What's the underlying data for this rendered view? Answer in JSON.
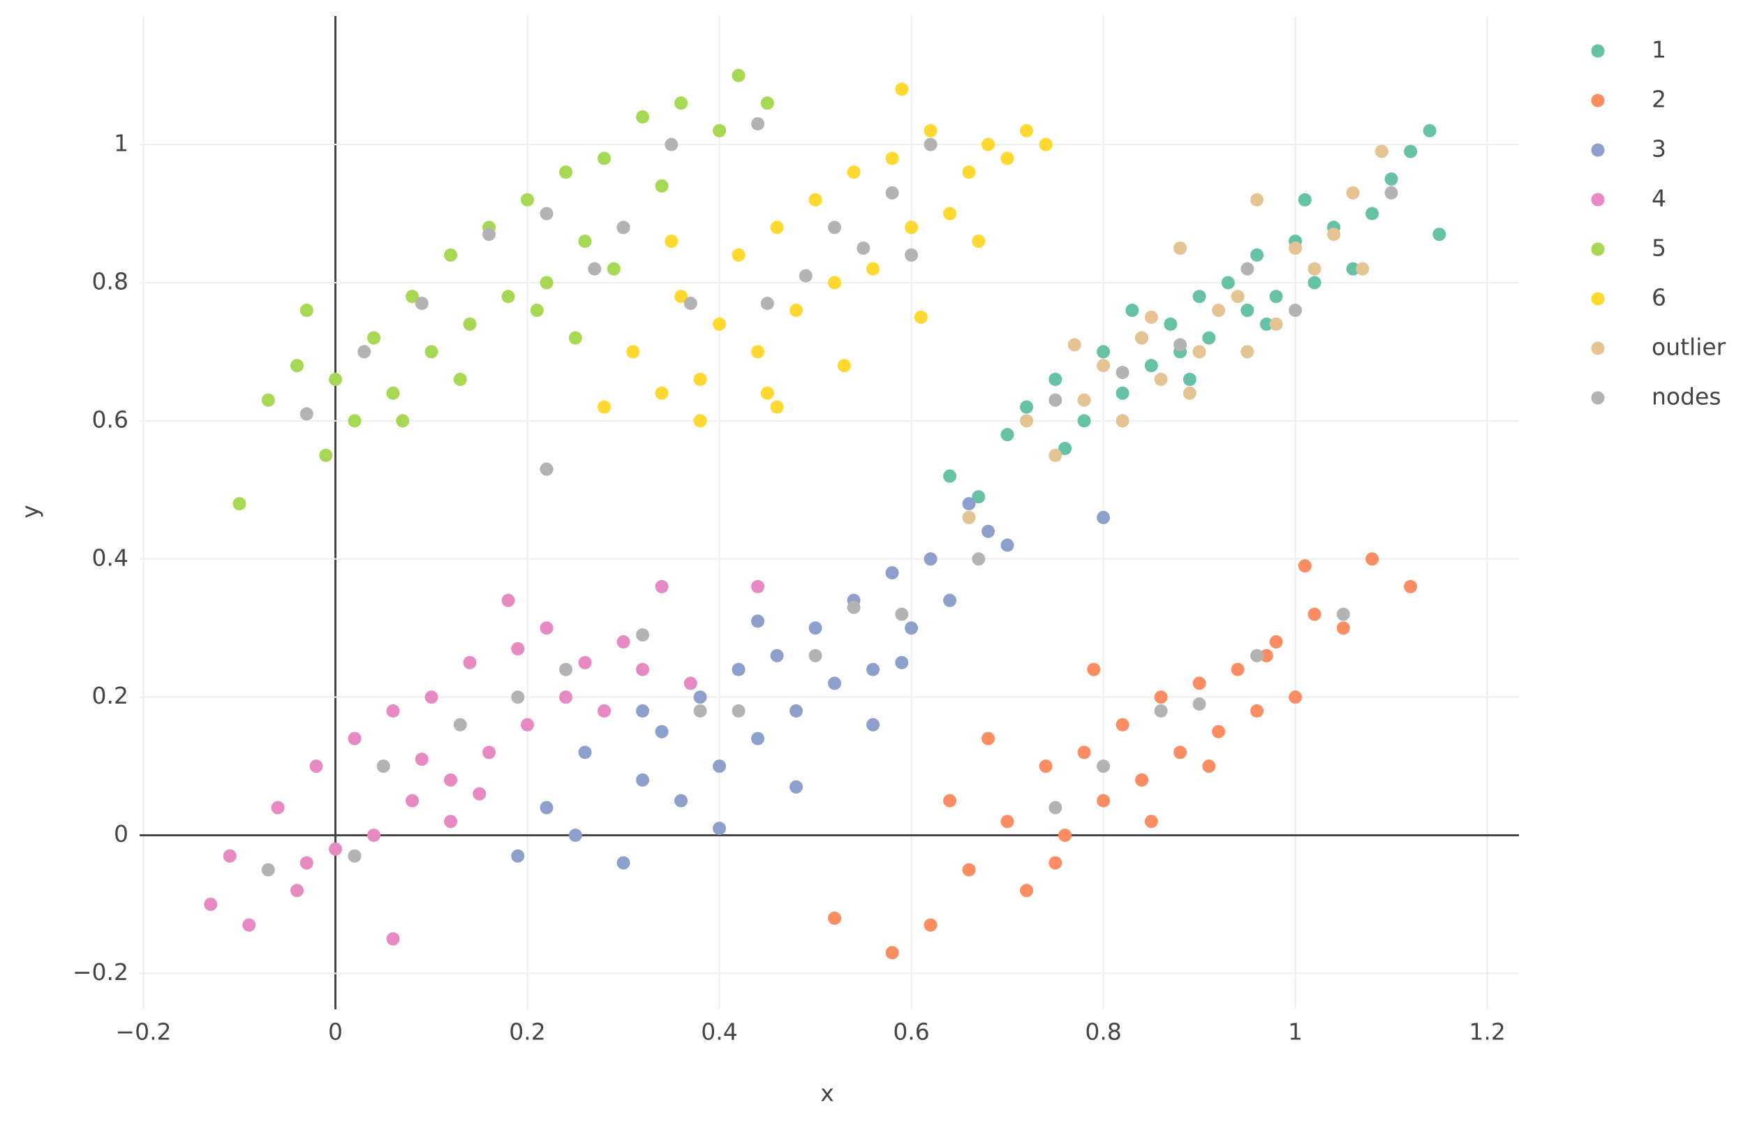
{
  "chart_data": {
    "type": "scatter",
    "x_label": "x",
    "y_label": "y",
    "xlim": [
      -0.204,
      1.233
    ],
    "ylim": [
      -0.252,
      1.186
    ],
    "xticks": [
      {
        "value": -0.2,
        "label": "−0.2"
      },
      0,
      0.2,
      0.4,
      0.6,
      0.8,
      1,
      1.2
    ],
    "yticks": [
      {
        "value": -0.2,
        "label": "−0.2"
      },
      0,
      0.2,
      0.4,
      0.6,
      0.8,
      1
    ],
    "grid": true,
    "legend": "right",
    "series": [
      {
        "name": "1",
        "color": "#66c2a5",
        "x": [
          0.72,
          0.75,
          0.78,
          0.8,
          0.82,
          0.84,
          0.85,
          0.87,
          0.88,
          0.9,
          0.91,
          0.93,
          0.95,
          0.96,
          0.98,
          1.0,
          1.02,
          1.04,
          1.06,
          1.08,
          1.1,
          1.12,
          1.14,
          1.15,
          0.7,
          0.76,
          0.83,
          0.89,
          0.97,
          1.01,
          0.64,
          0.67
        ],
        "values": [
          0.62,
          0.66,
          0.6,
          0.7,
          0.64,
          0.72,
          0.68,
          0.74,
          0.7,
          0.78,
          0.72,
          0.8,
          0.76,
          0.84,
          0.78,
          0.86,
          0.8,
          0.88,
          0.82,
          0.9,
          0.95,
          0.99,
          1.02,
          0.87,
          0.58,
          0.56,
          0.76,
          0.66,
          0.74,
          0.92,
          0.52,
          0.49
        ]
      },
      {
        "name": "2",
        "color": "#fc8d62",
        "x": [
          0.52,
          0.58,
          0.62,
          0.66,
          0.7,
          0.72,
          0.74,
          0.76,
          0.78,
          0.8,
          0.82,
          0.84,
          0.86,
          0.88,
          0.9,
          0.92,
          0.94,
          0.96,
          0.98,
          1.0,
          1.02,
          1.05,
          1.08,
          1.12,
          0.68,
          0.75,
          0.79,
          0.85,
          0.91,
          0.97,
          0.64,
          1.01
        ],
        "values": [
          -0.12,
          -0.17,
          -0.13,
          -0.05,
          0.02,
          -0.08,
          0.1,
          0.0,
          0.12,
          0.05,
          0.16,
          0.08,
          0.2,
          0.12,
          0.22,
          0.15,
          0.24,
          0.18,
          0.28,
          0.2,
          0.32,
          0.3,
          0.4,
          0.36,
          0.14,
          -0.04,
          0.24,
          0.02,
          0.1,
          0.26,
          0.05,
          0.39
        ]
      },
      {
        "name": "3",
        "color": "#8da0cb",
        "x": [
          0.19,
          0.22,
          0.26,
          0.3,
          0.32,
          0.34,
          0.36,
          0.38,
          0.4,
          0.42,
          0.44,
          0.46,
          0.48,
          0.5,
          0.52,
          0.54,
          0.56,
          0.58,
          0.6,
          0.62,
          0.64,
          0.66,
          0.68,
          0.7,
          0.32,
          0.4,
          0.48,
          0.56,
          0.44,
          0.59,
          0.8,
          0.25
        ],
        "values": [
          -0.03,
          0.04,
          0.12,
          -0.04,
          0.08,
          0.15,
          0.05,
          0.2,
          0.1,
          0.24,
          0.14,
          0.26,
          0.18,
          0.3,
          0.22,
          0.34,
          0.24,
          0.38,
          0.3,
          0.4,
          0.34,
          0.48,
          0.44,
          0.42,
          0.18,
          0.01,
          0.07,
          0.16,
          0.31,
          0.25,
          0.46,
          0.0
        ]
      },
      {
        "name": "4",
        "color": "#e78ac3",
        "x": [
          -0.13,
          -0.11,
          -0.09,
          -0.06,
          -0.04,
          -0.02,
          0.0,
          0.02,
          0.04,
          0.06,
          0.08,
          0.1,
          0.12,
          0.14,
          0.16,
          0.18,
          0.2,
          0.22,
          0.24,
          0.26,
          0.28,
          0.3,
          0.32,
          0.34,
          0.06,
          0.12,
          0.19,
          -0.03,
          0.44,
          0.37,
          0.09,
          0.15
        ],
        "values": [
          -0.1,
          -0.03,
          -0.13,
          0.04,
          -0.08,
          0.1,
          -0.02,
          0.14,
          0.0,
          0.18,
          0.05,
          0.2,
          0.08,
          0.25,
          0.12,
          0.34,
          0.16,
          0.3,
          0.2,
          0.25,
          0.18,
          0.28,
          0.24,
          0.36,
          -0.15,
          0.02,
          0.27,
          -0.04,
          0.36,
          0.22,
          0.11,
          0.06
        ]
      },
      {
        "name": "5",
        "color": "#a6d854",
        "x": [
          -0.1,
          -0.07,
          -0.04,
          -0.01,
          0.0,
          0.02,
          0.04,
          0.06,
          0.08,
          0.1,
          0.12,
          0.14,
          0.16,
          0.18,
          0.2,
          0.22,
          0.24,
          0.26,
          0.28,
          0.3,
          0.32,
          0.34,
          0.36,
          0.4,
          0.42,
          0.45,
          0.07,
          0.13,
          0.21,
          0.29,
          -0.03,
          0.25
        ],
        "values": [
          0.48,
          0.63,
          0.68,
          0.55,
          0.66,
          0.6,
          0.72,
          0.64,
          0.78,
          0.7,
          0.84,
          0.74,
          0.88,
          0.78,
          0.92,
          0.8,
          0.96,
          0.86,
          0.98,
          0.88,
          1.04,
          0.94,
          1.06,
          1.02,
          1.1,
          1.06,
          0.6,
          0.66,
          0.76,
          0.82,
          0.76,
          0.72
        ]
      },
      {
        "name": "6",
        "color": "#ffd92f",
        "x": [
          0.28,
          0.31,
          0.34,
          0.36,
          0.38,
          0.4,
          0.42,
          0.44,
          0.46,
          0.48,
          0.5,
          0.52,
          0.54,
          0.56,
          0.58,
          0.6,
          0.62,
          0.64,
          0.66,
          0.68,
          0.7,
          0.72,
          0.74,
          0.59,
          0.38,
          0.46,
          0.53,
          0.61,
          0.45,
          0.22,
          0.35,
          0.67
        ],
        "values": [
          0.62,
          0.7,
          0.64,
          0.78,
          0.66,
          0.74,
          0.84,
          0.7,
          0.88,
          0.76,
          0.92,
          0.8,
          0.96,
          0.82,
          0.98,
          0.88,
          1.02,
          0.9,
          0.96,
          1.0,
          0.98,
          1.02,
          1.0,
          1.08,
          0.6,
          0.62,
          0.68,
          0.75,
          0.64,
          0.53,
          0.86,
          0.86
        ]
      },
      {
        "name": "outlier",
        "color": "#e5c494",
        "x": [
          0.72,
          0.75,
          0.78,
          0.8,
          0.82,
          0.84,
          0.86,
          0.88,
          0.9,
          0.92,
          0.94,
          0.96,
          0.98,
          1.0,
          1.02,
          1.04,
          1.06,
          1.09,
          0.66,
          0.85,
          0.89,
          0.95,
          0.77,
          1.07
        ],
        "values": [
          0.6,
          0.55,
          0.63,
          0.68,
          0.6,
          0.72,
          0.66,
          0.85,
          0.7,
          0.76,
          0.78,
          0.92,
          0.74,
          0.85,
          0.82,
          0.87,
          0.93,
          0.99,
          0.46,
          0.75,
          0.64,
          0.7,
          0.71,
          0.82
        ]
      },
      {
        "name": "nodes",
        "color": "#b3b3b3",
        "x": [
          0.22,
          0.44,
          0.35,
          0.52,
          0.58,
          0.62,
          -0.03,
          0.03,
          0.09,
          0.16,
          0.22,
          0.27,
          0.3,
          0.37,
          0.45,
          0.49,
          0.55,
          0.6,
          0.75,
          0.82,
          0.88,
          0.95,
          1.0,
          1.1,
          0.05,
          0.13,
          0.19,
          0.24,
          0.32,
          0.38,
          0.42,
          0.5,
          0.54,
          0.8,
          0.86,
          0.9,
          0.96,
          1.05,
          0.75,
          0.67,
          0.59,
          -0.07,
          0.02
        ],
        "values": [
          0.53,
          1.03,
          1.0,
          0.88,
          0.93,
          1.0,
          0.61,
          0.7,
          0.77,
          0.87,
          0.9,
          0.82,
          0.88,
          0.77,
          0.77,
          0.81,
          0.85,
          0.84,
          0.63,
          0.67,
          0.71,
          0.82,
          0.76,
          0.93,
          0.1,
          0.16,
          0.2,
          0.24,
          0.29,
          0.18,
          0.18,
          0.26,
          0.33,
          0.1,
          0.18,
          0.19,
          0.26,
          0.32,
          0.04,
          0.4,
          0.32,
          -0.05,
          -0.03
        ]
      }
    ]
  }
}
